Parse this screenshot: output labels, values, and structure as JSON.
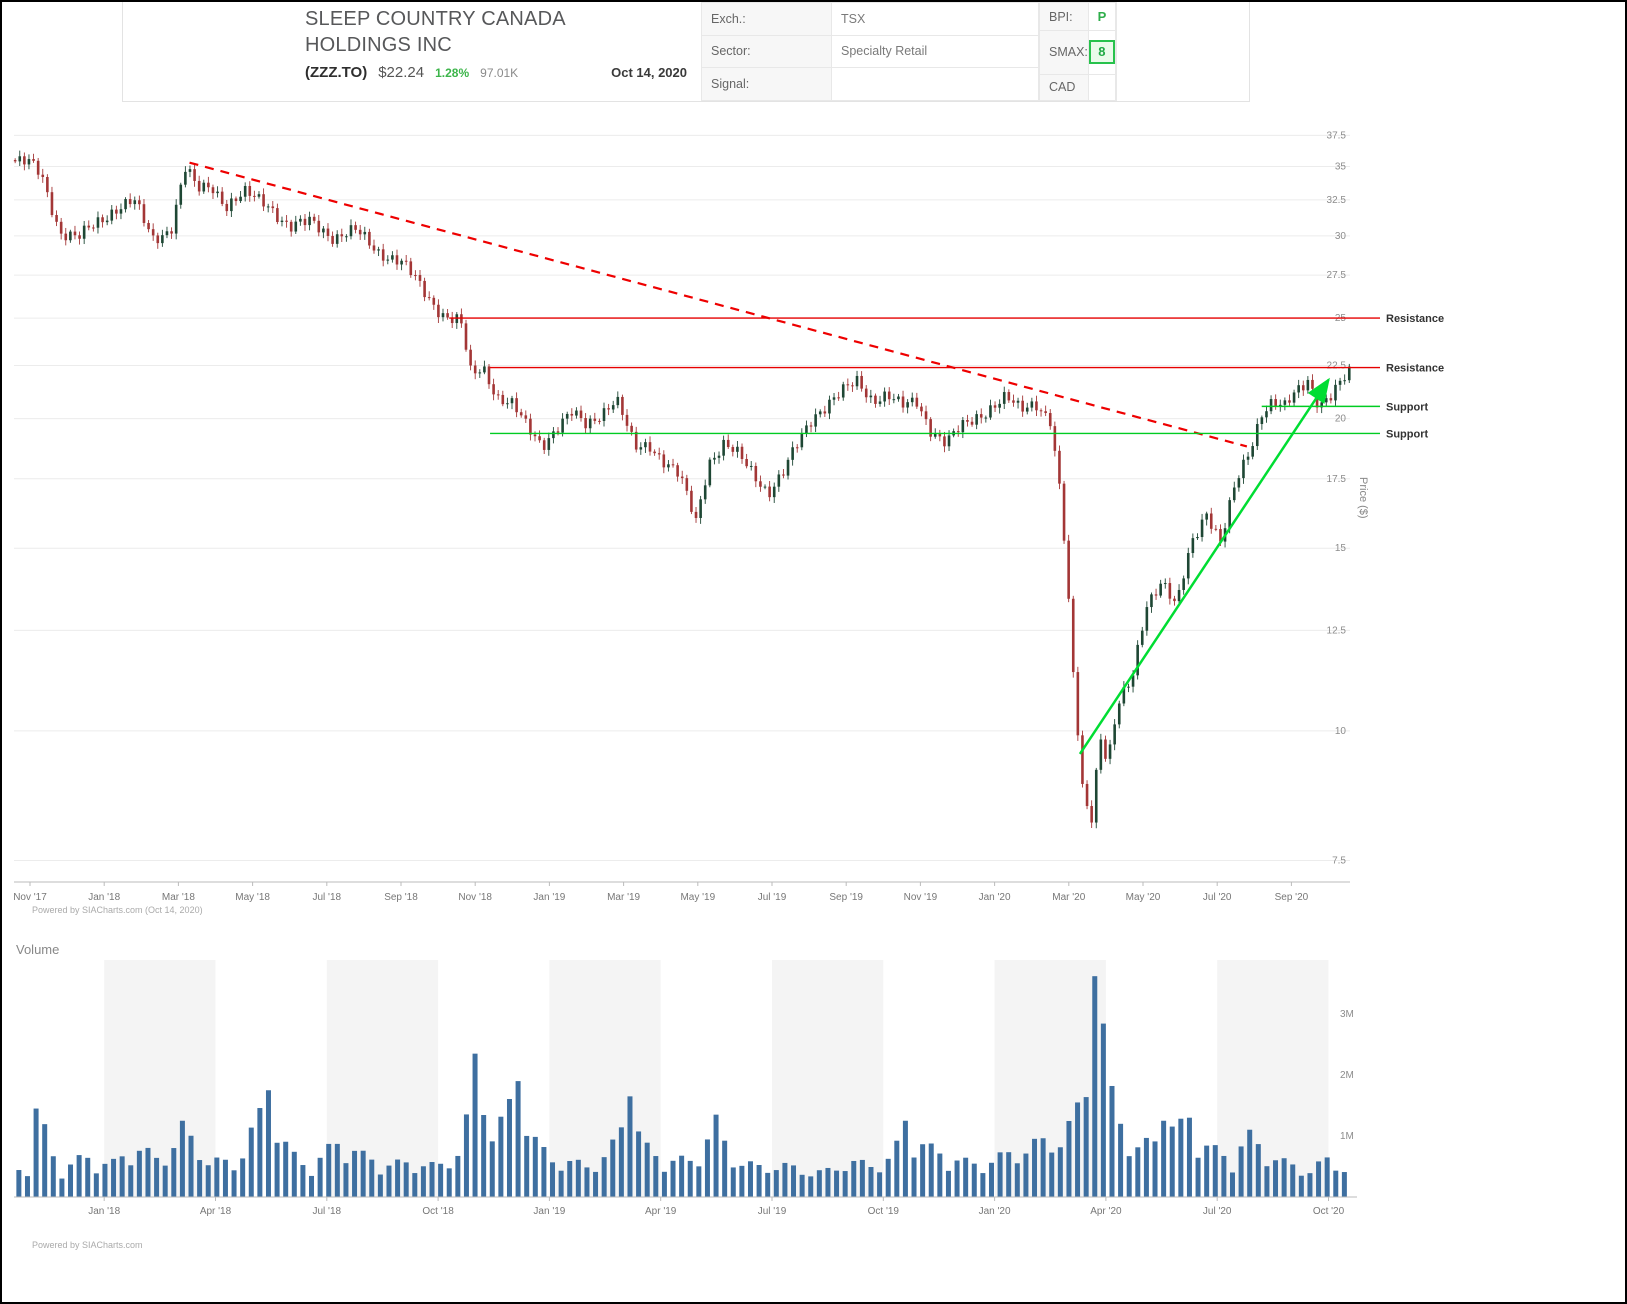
{
  "header": {
    "company_line1": "SLEEP COUNTRY CANADA",
    "company_line2": "HOLDINGS INC",
    "ticker": "(ZZZ.TO)",
    "price": "$22.24",
    "change_pct": "1.28%",
    "day_volume": "97.01K",
    "date": "Oct 14, 2020",
    "fields": [
      {
        "label": "Exch.:",
        "value": "TSX"
      },
      {
        "label": "Sector:",
        "value": "Specialty Retail"
      },
      {
        "label": "Signal:",
        "value": ""
      }
    ],
    "bpi_label": "BPI:",
    "bpi_value": "P",
    "smax_label": "SMAX:",
    "smax_value": "8",
    "currency": "CAD"
  },
  "colors": {
    "change_green": "#3cb54a",
    "candle_up": "#1e4734",
    "candle_down": "#a33636",
    "volume_bar": "#3e6fa0",
    "resistance_red": "#e60000",
    "trendline_red": "#ee0000",
    "support_green": "#00cc22",
    "arrow_green": "#00dd33",
    "band_gray": "#f4f4f4",
    "grid_gray": "#ececec",
    "axis_gray": "#bbbbbb",
    "tick_text": "#8c8c8c"
  },
  "chart_data": [
    {
      "type": "candlestick",
      "title": "SLEEP COUNTRY CANADA HOLDINGS INC (ZZZ.TO) daily price",
      "ylabel": "Price ($)",
      "y_scale": "log",
      "ylim": [
        7.15,
        39.5
      ],
      "yticks": [
        7.5,
        10,
        12.5,
        15,
        17.5,
        20,
        22.5,
        25,
        27.5,
        30,
        32.5,
        35,
        37.5
      ],
      "ytick_labels": [
        "7.5",
        "10",
        "12.5",
        "15",
        "17.5",
        "20",
        "22.5",
        "25",
        "27.5",
        "30",
        "32.5",
        "35",
        "37.5"
      ],
      "grid": "horizontal",
      "x_axis": {
        "unit": "months since Nov 2017",
        "tick_step_months": 2,
        "tick_labels": [
          "Nov '17",
          "Jan '18",
          "Mar '18",
          "May '18",
          "Jul '18",
          "Sep '18",
          "Nov '18",
          "Jan '19",
          "Mar '19",
          "May '19",
          "Jul '19",
          "Sep '19",
          "Nov '19",
          "Jan '20",
          "Mar '20",
          "May '20",
          "Jul '20",
          "Sep '20"
        ]
      },
      "price_path_anchors": [
        [
          -0.4,
          35.4
        ],
        [
          0.0,
          35.2
        ],
        [
          0.3,
          34.4
        ],
        [
          0.8,
          30.3
        ],
        [
          1.3,
          29.8
        ],
        [
          1.8,
          30.9
        ],
        [
          2.3,
          31.9
        ],
        [
          2.8,
          32.4
        ],
        [
          3.3,
          29.8
        ],
        [
          3.8,
          30.5
        ],
        [
          4.2,
          34.9
        ],
        [
          4.5,
          33.2
        ],
        [
          4.9,
          33.6
        ],
        [
          5.3,
          32.1
        ],
        [
          5.8,
          32.9
        ],
        [
          6.4,
          32.3
        ],
        [
          7.0,
          30.5
        ],
        [
          7.6,
          31.0
        ],
        [
          8.2,
          29.9
        ],
        [
          8.8,
          30.3
        ],
        [
          9.4,
          29.0
        ],
        [
          10.0,
          28.3
        ],
        [
          10.4,
          27.2
        ],
        [
          10.8,
          26.0
        ],
        [
          11.2,
          25.1
        ],
        [
          11.6,
          24.8
        ],
        [
          11.9,
          21.9
        ],
        [
          12.2,
          22.5
        ],
        [
          12.6,
          21.0
        ],
        [
          13.0,
          20.6
        ],
        [
          13.4,
          19.6
        ],
        [
          13.8,
          18.9
        ],
        [
          14.2,
          19.6
        ],
        [
          14.6,
          20.2
        ],
        [
          15.0,
          19.7
        ],
        [
          15.4,
          20.3
        ],
        [
          15.8,
          20.9
        ],
        [
          16.3,
          18.7
        ],
        [
          16.7,
          18.9
        ],
        [
          17.1,
          18.2
        ],
        [
          17.5,
          17.6
        ],
        [
          17.95,
          15.9
        ],
        [
          18.3,
          18.2
        ],
        [
          18.7,
          18.9
        ],
        [
          19.1,
          18.4
        ],
        [
          19.5,
          17.7
        ],
        [
          19.9,
          17.0
        ],
        [
          20.3,
          17.7
        ],
        [
          20.7,
          18.9
        ],
        [
          21.1,
          20.1
        ],
        [
          21.5,
          20.7
        ],
        [
          21.9,
          21.2
        ],
        [
          22.3,
          21.7
        ],
        [
          22.7,
          20.9
        ],
        [
          23.1,
          21.1
        ],
        [
          23.5,
          20.5
        ],
        [
          23.9,
          20.8
        ],
        [
          24.3,
          19.5
        ],
        [
          24.7,
          18.9
        ],
        [
          25.1,
          19.6
        ],
        [
          25.5,
          20.1
        ],
        [
          25.9,
          20.5
        ],
        [
          26.3,
          20.9
        ],
        [
          26.7,
          20.4
        ],
        [
          27.1,
          20.8
        ],
        [
          27.5,
          19.9
        ],
        [
          27.8,
          16.5
        ],
        [
          28.1,
          11.5
        ],
        [
          28.35,
          8.9
        ],
        [
          28.6,
          8.2
        ],
        [
          28.85,
          9.9
        ],
        [
          29.05,
          9.3
        ],
        [
          29.35,
          10.6
        ],
        [
          29.7,
          11.2
        ],
        [
          30.1,
          13.3
        ],
        [
          30.5,
          13.9
        ],
        [
          30.9,
          13.1
        ],
        [
          31.3,
          15.2
        ],
        [
          31.7,
          16.3
        ],
        [
          32.1,
          15.1
        ],
        [
          32.5,
          17.3
        ],
        [
          32.9,
          18.8
        ],
        [
          33.2,
          20.3
        ],
        [
          33.5,
          20.7
        ],
        [
          33.8,
          20.4
        ],
        [
          34.1,
          21.2
        ],
        [
          34.45,
          21.9
        ],
        [
          34.75,
          20.6
        ],
        [
          35.05,
          20.9
        ],
        [
          35.3,
          21.5
        ],
        [
          35.55,
          22.2
        ]
      ],
      "overlays": {
        "downtrend_line": {
          "style": "dashed",
          "color": "#ee0000",
          "from_month": 4.3,
          "from_price": 35.3,
          "to_month": 32.8,
          "to_price": 18.8
        },
        "levels": [
          {
            "label": "Resistance",
            "price": 25.0,
            "from_month": 11.3
          },
          {
            "label": "Resistance",
            "price": 22.4,
            "from_month": 12.4
          },
          {
            "label": "Support",
            "price": 20.55,
            "from_month": 33.2
          },
          {
            "label": "Support",
            "price": 19.35,
            "from_month": 12.4
          }
        ],
        "trend_arrow": {
          "from_month": 28.3,
          "from_price": 9.5,
          "to_month": 35.0,
          "to_price": 21.8
        }
      },
      "credit": "Powered by SIACharts.com (Oct 14, 2020)"
    },
    {
      "type": "bar",
      "title": "Volume",
      "unit": "shares (millions)",
      "ylim": [
        0,
        3.9
      ],
      "yticks": [
        {
          "v": 1,
          "label": "1M"
        },
        {
          "v": 2,
          "label": "2M"
        },
        {
          "v": 3,
          "label": "3M"
        }
      ],
      "x_axis": {
        "first_tick_month": 2,
        "tick_step_months": 3,
        "tick_labels": [
          "Jan '18",
          "Apr '18",
          "Jul '18",
          "Oct '18",
          "Jan '19",
          "Apr '19",
          "Jul '19",
          "Oct '19",
          "Jan '20",
          "Apr '20",
          "Jul '20",
          "Oct '20"
        ]
      },
      "volume_anchors_millions": [
        [
          0,
          0.55
        ],
        [
          0.25,
          1.45
        ],
        [
          0.8,
          0.5
        ],
        [
          1.5,
          0.75
        ],
        [
          2.2,
          0.6
        ],
        [
          2.9,
          0.95
        ],
        [
          3.5,
          0.65
        ],
        [
          4.1,
          1.25
        ],
        [
          4.8,
          0.7
        ],
        [
          5.5,
          0.6
        ],
        [
          6.4,
          1.75
        ],
        [
          7.0,
          0.8
        ],
        [
          7.6,
          0.55
        ],
        [
          8.3,
          1.05
        ],
        [
          9.0,
          0.75
        ],
        [
          9.7,
          0.6
        ],
        [
          10.4,
          0.65
        ],
        [
          11.0,
          0.55
        ],
        [
          11.6,
          0.9
        ],
        [
          12.1,
          2.35
        ],
        [
          12.5,
          1.1
        ],
        [
          13.1,
          1.9
        ],
        [
          13.7,
          0.9
        ],
        [
          14.3,
          0.65
        ],
        [
          15.0,
          0.6
        ],
        [
          15.6,
          0.75
        ],
        [
          16.1,
          1.65
        ],
        [
          16.7,
          0.8
        ],
        [
          17.3,
          0.7
        ],
        [
          17.9,
          0.65
        ],
        [
          18.4,
          1.35
        ],
        [
          19.0,
          0.7
        ],
        [
          19.6,
          0.55
        ],
        [
          20.2,
          0.6
        ],
        [
          20.8,
          0.5
        ],
        [
          21.4,
          0.45
        ],
        [
          22.0,
          0.65
        ],
        [
          22.6,
          0.6
        ],
        [
          23.2,
          0.7
        ],
        [
          23.6,
          1.25
        ],
        [
          24.2,
          0.9
        ],
        [
          24.8,
          0.75
        ],
        [
          25.4,
          0.6
        ],
        [
          26.0,
          0.7
        ],
        [
          26.6,
          0.85
        ],
        [
          27.2,
          1.0
        ],
        [
          27.8,
          1.1
        ],
        [
          28.3,
          1.55
        ],
        [
          28.8,
          3.62
        ],
        [
          29.3,
          1.2
        ],
        [
          29.9,
          0.85
        ],
        [
          30.5,
          1.25
        ],
        [
          31.2,
          1.3
        ],
        [
          31.8,
          0.9
        ],
        [
          32.4,
          0.7
        ],
        [
          32.8,
          1.15
        ],
        [
          33.3,
          0.85
        ],
        [
          33.9,
          0.6
        ],
        [
          34.5,
          0.5
        ],
        [
          35.0,
          0.7
        ],
        [
          35.4,
          0.55
        ]
      ],
      "credit": "Powered by SIACharts.com"
    }
  ]
}
